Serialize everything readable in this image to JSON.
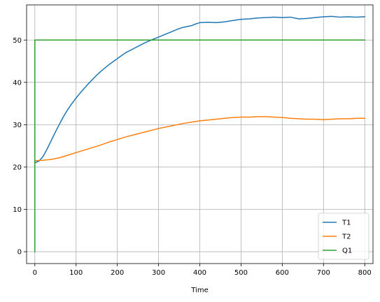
{
  "chart_data": {
    "type": "line",
    "title": "",
    "xlabel": "Time",
    "ylabel": "",
    "xlim": [
      -20,
      820
    ],
    "ylim": [
      -2.8,
      58.3
    ],
    "xticks": [
      0,
      100,
      200,
      300,
      400,
      500,
      600,
      700,
      800
    ],
    "yticks": [
      0,
      10,
      20,
      30,
      40,
      50
    ],
    "grid": true,
    "legend_position": "lower-right",
    "series": [
      {
        "name": "T1",
        "color": "#1f77b4",
        "x": [
          0,
          10,
          20,
          30,
          40,
          50,
          60,
          70,
          80,
          90,
          100,
          110,
          120,
          130,
          140,
          150,
          160,
          170,
          180,
          190,
          200,
          210,
          220,
          230,
          240,
          250,
          260,
          270,
          280,
          290,
          300,
          310,
          320,
          330,
          340,
          350,
          360,
          370,
          380,
          390,
          400,
          420,
          440,
          460,
          480,
          500,
          520,
          540,
          560,
          580,
          600,
          620,
          640,
          660,
          680,
          700,
          720,
          740,
          760,
          780,
          800
        ],
        "y": [
          21.0,
          21.4,
          22.5,
          24.3,
          26.3,
          28.3,
          30.2,
          32.0,
          33.6,
          35.0,
          36.3,
          37.5,
          38.6,
          39.7,
          40.7,
          41.7,
          42.6,
          43.4,
          44.2,
          44.9,
          45.6,
          46.3,
          47.0,
          47.5,
          48.0,
          48.5,
          49.0,
          49.5,
          49.9,
          50.3,
          50.7,
          51.1,
          51.5,
          51.9,
          52.3,
          52.7,
          53.0,
          53.2,
          53.4,
          53.8,
          54.1,
          54.2,
          54.1,
          54.3,
          54.6,
          54.9,
          55.0,
          55.2,
          55.3,
          55.4,
          55.3,
          55.4,
          55.0,
          55.1,
          55.3,
          55.5,
          55.6,
          55.4,
          55.5,
          55.4,
          55.5
        ]
      },
      {
        "name": "T2",
        "color": "#ff7f0e",
        "x": [
          0,
          20,
          40,
          60,
          80,
          100,
          120,
          140,
          160,
          180,
          200,
          220,
          240,
          260,
          280,
          300,
          320,
          340,
          360,
          380,
          400,
          420,
          440,
          460,
          480,
          500,
          520,
          540,
          560,
          580,
          600,
          620,
          640,
          660,
          680,
          700,
          720,
          740,
          760,
          780,
          800
        ],
        "y": [
          21.5,
          21.6,
          21.8,
          22.2,
          22.8,
          23.4,
          24.0,
          24.6,
          25.2,
          25.9,
          26.5,
          27.1,
          27.6,
          28.1,
          28.6,
          29.1,
          29.5,
          29.9,
          30.3,
          30.6,
          30.9,
          31.1,
          31.3,
          31.5,
          31.7,
          31.8,
          31.8,
          31.9,
          31.9,
          31.8,
          31.7,
          31.5,
          31.4,
          31.3,
          31.3,
          31.2,
          31.3,
          31.4,
          31.4,
          31.5,
          31.5
        ]
      },
      {
        "name": "Q1",
        "color": "#2ca02c",
        "x": [
          0,
          0,
          800
        ],
        "y": [
          0,
          50,
          50
        ]
      }
    ]
  }
}
